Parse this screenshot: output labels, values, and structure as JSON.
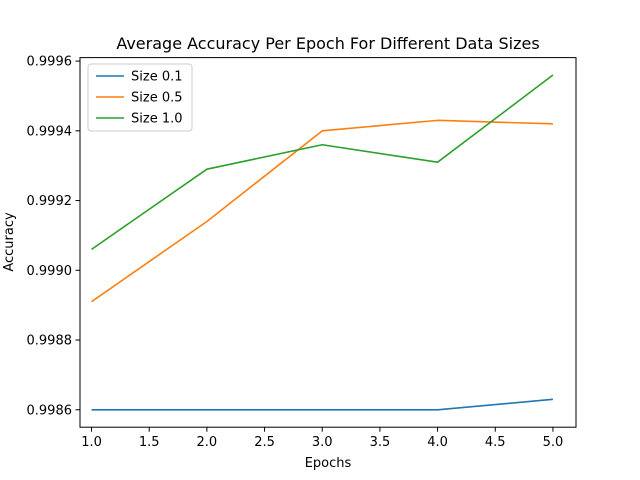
{
  "chart_data": {
    "type": "line",
    "title": "Average Accuracy Per Epoch For Different Data Sizes",
    "xlabel": "Epochs",
    "ylabel": "Accuracy",
    "x": [
      1.0,
      2.0,
      3.0,
      4.0,
      5.0
    ],
    "xlim": [
      0.9,
      5.2
    ],
    "ylim": [
      0.99855,
      0.99961
    ],
    "x_ticks": [
      1.0,
      1.5,
      2.0,
      2.5,
      3.0,
      3.5,
      4.0,
      4.5,
      5.0
    ],
    "x_tick_labels": [
      "1.0",
      "1.5",
      "2.0",
      "2.5",
      "3.0",
      "3.5",
      "4.0",
      "4.5",
      "5.0"
    ],
    "y_ticks": [
      0.9986,
      0.9988,
      0.999,
      0.9992,
      0.9994,
      0.9996
    ],
    "y_tick_labels": [
      "0.9986",
      "0.9988",
      "0.9990",
      "0.9992",
      "0.9994",
      "0.9996"
    ],
    "grid": false,
    "legend_position": "upper-left",
    "series": [
      {
        "name": "Size 0.1",
        "color": "#1f77b4",
        "values": [
          0.9986,
          0.9986,
          0.9986,
          0.9986,
          0.99863
        ]
      },
      {
        "name": "Size 0.5",
        "color": "#ff7f0e",
        "values": [
          0.99891,
          0.99914,
          0.9994,
          0.99943,
          0.99942
        ]
      },
      {
        "name": "Size 1.0",
        "color": "#2ca02c",
        "values": [
          0.99906,
          0.99929,
          0.99936,
          0.99931,
          0.99956
        ]
      }
    ]
  }
}
